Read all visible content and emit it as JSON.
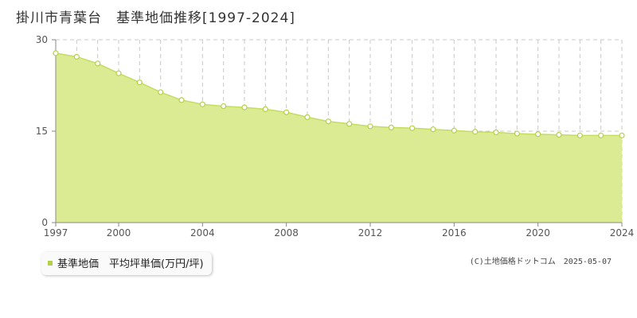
{
  "title": "掛川市青葉台　基準地価推移[1997-2024]",
  "legend_label": "基準地価　平均坪単価(万円/坪)",
  "credit": "(C)土地価格ドットコム　2025-05-07",
  "colors": {
    "fill": "#dbeb94",
    "line": "#c4dc60",
    "marker_fill": "#ffffff",
    "marker_stroke": "#b3d148",
    "grid": "#c8c8c8",
    "axis": "#888888",
    "legend_swatch": "#b3d148"
  },
  "chart_data": {
    "type": "area",
    "title": "掛川市青葉台　基準地価推移[1997-2024]",
    "xlabel": "",
    "ylabel": "",
    "xlim": [
      1997,
      2024
    ],
    "ylim": [
      0,
      30
    ],
    "grid": true,
    "legend": "bottom-left",
    "x_ticks": [
      "1997",
      "2000",
      "2004",
      "2008",
      "2012",
      "2016",
      "2020",
      "2024"
    ],
    "y_ticks": [
      "0",
      "15",
      "30"
    ],
    "series": [
      {
        "name": "基準地価　平均坪単価(万円/坪)",
        "x": [
          1997,
          1998,
          1999,
          2000,
          2001,
          2002,
          2003,
          2004,
          2005,
          2006,
          2007,
          2008,
          2009,
          2010,
          2011,
          2012,
          2013,
          2014,
          2015,
          2016,
          2017,
          2018,
          2019,
          2020,
          2021,
          2022,
          2023,
          2024
        ],
        "values": [
          27.8,
          27.2,
          26.1,
          24.5,
          23.0,
          21.4,
          20.1,
          19.4,
          19.1,
          18.9,
          18.6,
          18.1,
          17.3,
          16.6,
          16.2,
          15.8,
          15.6,
          15.5,
          15.3,
          15.1,
          14.9,
          14.8,
          14.6,
          14.5,
          14.4,
          14.3,
          14.3,
          14.3
        ]
      }
    ]
  }
}
